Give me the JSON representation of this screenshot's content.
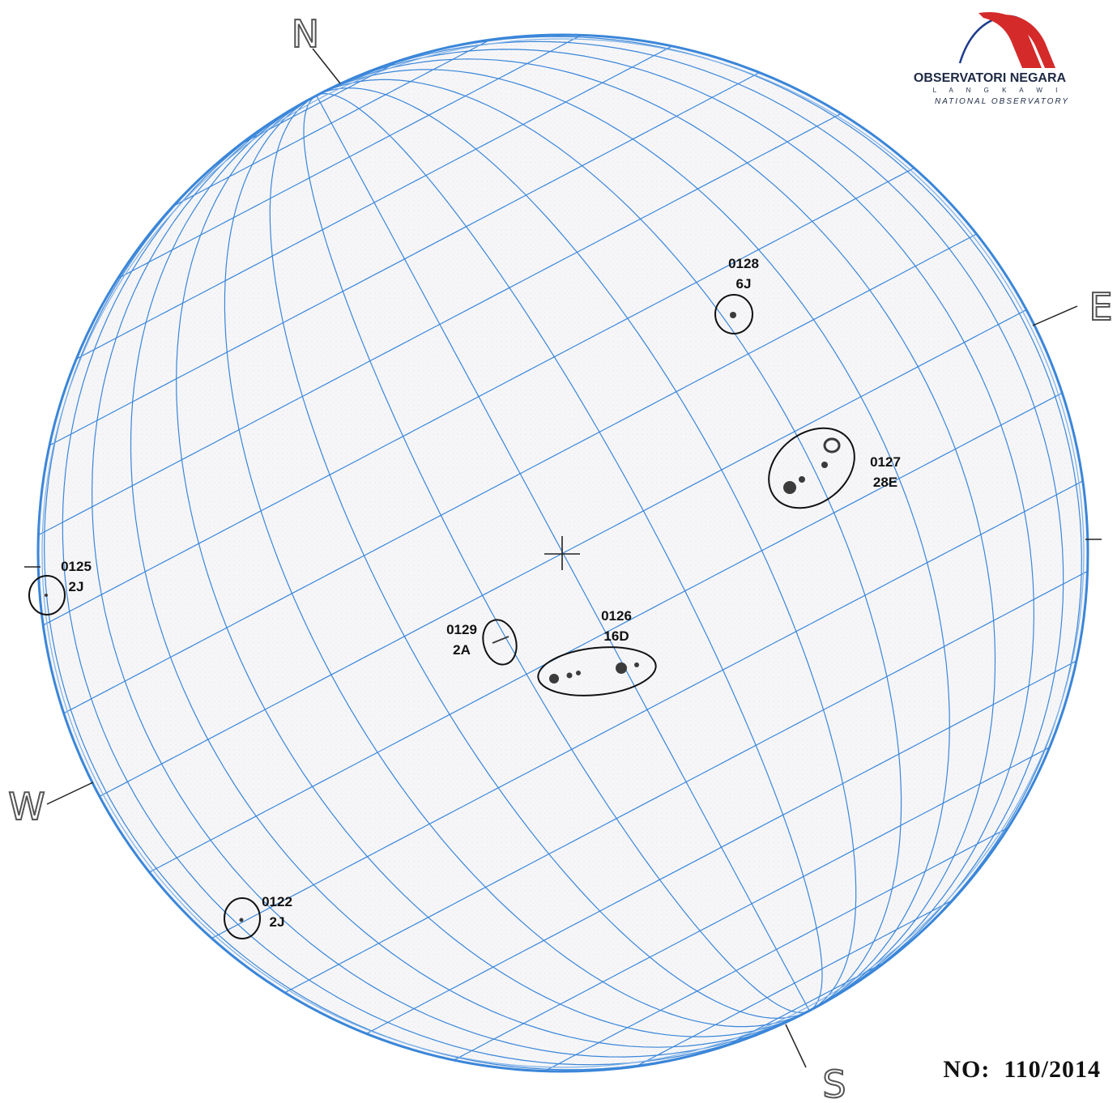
{
  "logo": {
    "title": "OBSERVATORI NEGARA",
    "subtitle": "L A N G K A W I",
    "tagline": "NATIONAL OBSERVATORY",
    "colors": {
      "arc_red": "#d42a2a",
      "arc_blue": "#1f3b8c",
      "text": "#1f2a44"
    }
  },
  "cardinals": {
    "north": "N",
    "south": "S",
    "east": "E",
    "west": "W"
  },
  "report_number": "NO:  110/2014",
  "sunspot_groups": [
    {
      "number": "0128",
      "class": "6J"
    },
    {
      "number": "0127",
      "class": "28E"
    },
    {
      "number": "0125",
      "class": "2J"
    },
    {
      "number": "0129",
      "class": "2A"
    },
    {
      "number": "0126",
      "class": "16D"
    },
    {
      "number": "0122",
      "class": "2J"
    }
  ],
  "colors": {
    "grid": "#3a86d9",
    "limb": "#3a86d9",
    "ink": "#111111"
  }
}
